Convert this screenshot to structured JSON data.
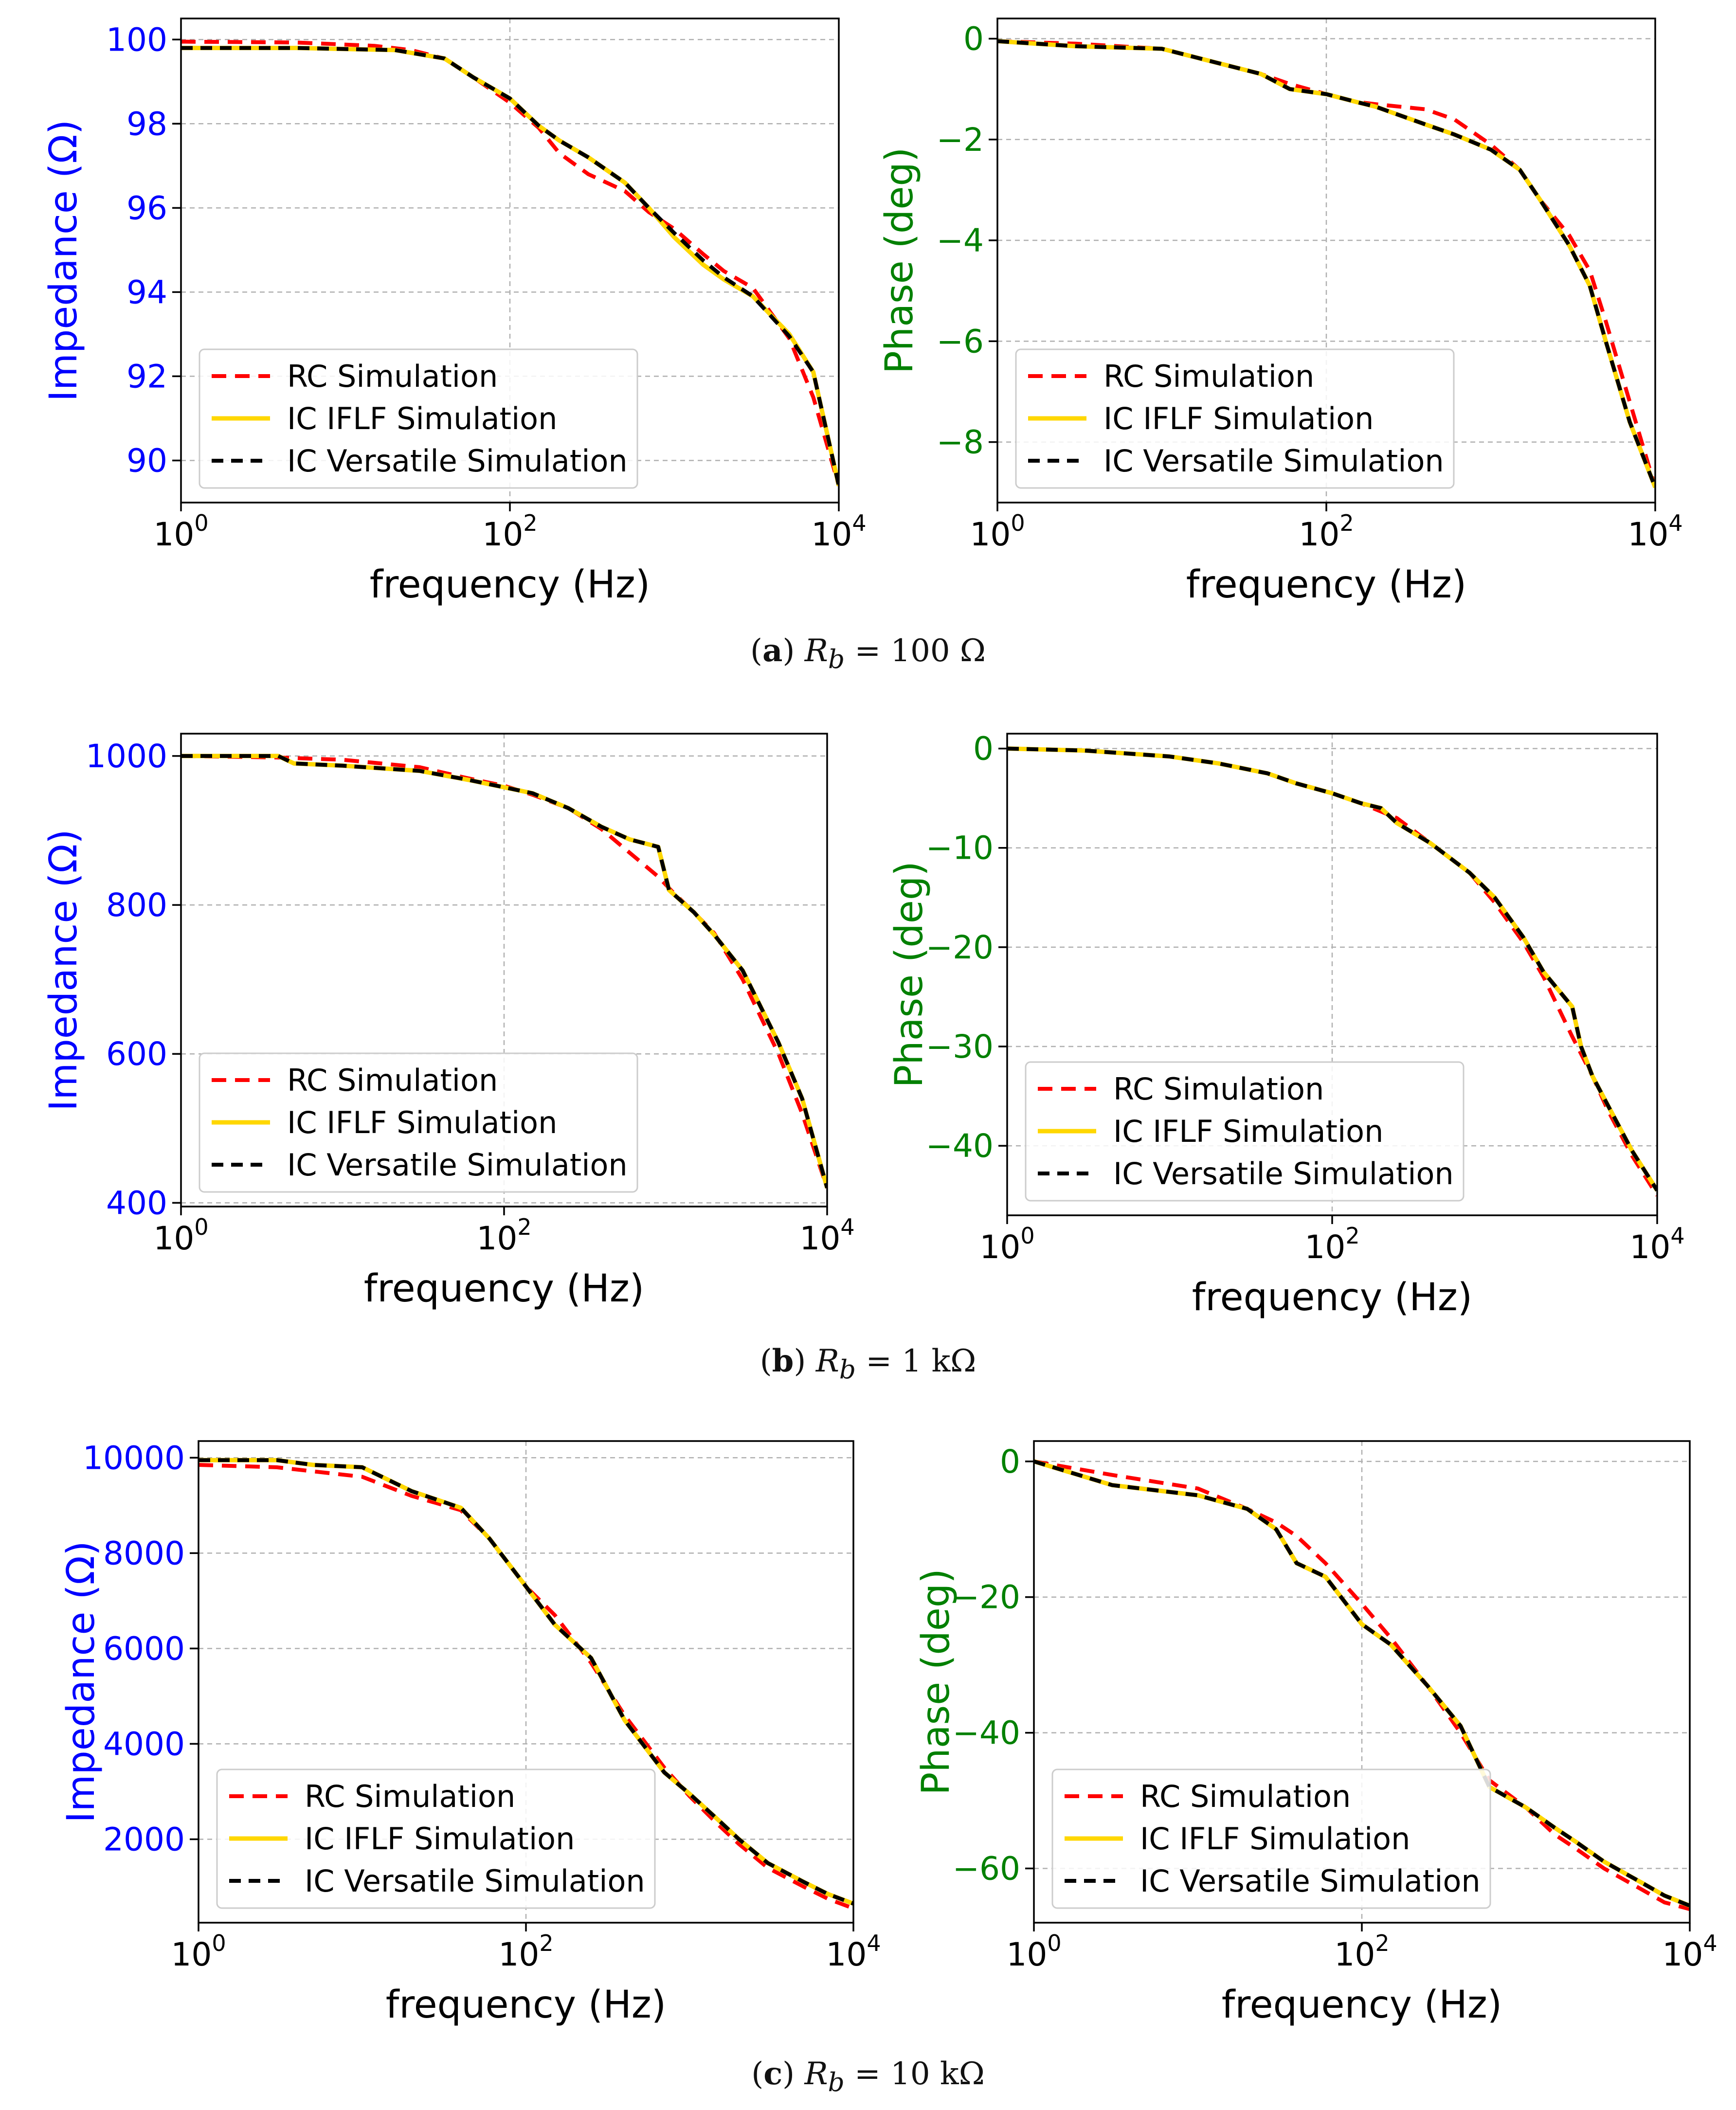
{
  "legend_entries": [
    "RC Simulation",
    "IC IFLF Simulation",
    "IC Versatile Simulation"
  ],
  "series_colors": {
    "RC Simulation": "#ff0000",
    "IC IFLF Simulation": "#ffd700",
    "IC Versatile Simulation": "#000000"
  },
  "impedance_axis_color": "#0000ff",
  "phase_axis_color": "#008000",
  "captions": [
    {
      "letter": "a",
      "var": "R",
      "sub": "b",
      "rest": " = 100 Ω"
    },
    {
      "letter": "b",
      "var": "R",
      "sub": "b",
      "rest": " = 1 kΩ"
    },
    {
      "letter": "c",
      "var": "R",
      "sub": "b",
      "rest": " = 10 kΩ"
    }
  ],
  "chart_data": [
    {
      "type": "line",
      "panel": "a-impedance",
      "xlabel": "frequency (Hz)",
      "ylabel": "Impedance (Ω)",
      "xscale": "log",
      "xlim": [
        1,
        10000
      ],
      "ylim": [
        89,
        100.5
      ],
      "xticks": [
        1,
        100,
        10000
      ],
      "xtick_labels": [
        {
          "base": "10",
          "exp": "0"
        },
        {
          "base": "10",
          "exp": "2"
        },
        {
          "base": "10",
          "exp": "4"
        }
      ],
      "yticks": [
        90,
        92,
        94,
        96,
        98,
        100
      ],
      "ytick_labels": [
        "90",
        "92",
        "94",
        "96",
        "98",
        "100"
      ],
      "grid": true,
      "legend_loc": "lower-left",
      "series": [
        {
          "name": "RC Simulation",
          "x": [
            1,
            5,
            15,
            25,
            40,
            60,
            100,
            150,
            200,
            300,
            500,
            700,
            1000,
            1500,
            2000,
            3000,
            5000,
            7000,
            10000
          ],
          "y": [
            99.95,
            99.93,
            99.85,
            99.75,
            99.55,
            99.1,
            98.5,
            97.9,
            97.3,
            96.8,
            96.4,
            95.9,
            95.5,
            94.9,
            94.5,
            94.1,
            92.9,
            91.5,
            89.4
          ]
        },
        {
          "name": "IC IFLF Simulation",
          "x": [
            1,
            5,
            20,
            40,
            60,
            100,
            150,
            200,
            300,
            500,
            700,
            1000,
            1500,
            2000,
            3000,
            5000,
            7000,
            10000
          ],
          "y": [
            99.8,
            99.8,
            99.75,
            99.55,
            99.1,
            98.6,
            97.95,
            97.6,
            97.2,
            96.6,
            96.0,
            95.3,
            94.65,
            94.3,
            93.9,
            93.0,
            92.1,
            89.4
          ]
        },
        {
          "name": "IC Versatile Simulation",
          "x": [
            1,
            5,
            20,
            40,
            60,
            100,
            150,
            200,
            300,
            500,
            700,
            1000,
            1500,
            2000,
            3000,
            5000,
            7000,
            10000
          ],
          "y": [
            99.8,
            99.8,
            99.75,
            99.55,
            99.1,
            98.6,
            97.95,
            97.6,
            97.2,
            96.6,
            96.0,
            95.4,
            94.75,
            94.35,
            93.9,
            92.95,
            92.1,
            89.4
          ]
        }
      ]
    },
    {
      "type": "line",
      "panel": "a-phase",
      "xlabel": "frequency (Hz)",
      "ylabel": "Phase (deg)",
      "xscale": "log",
      "xlim": [
        1,
        10000
      ],
      "ylim": [
        -9.2,
        0.4
      ],
      "xticks": [
        1,
        100,
        10000
      ],
      "xtick_labels": [
        {
          "base": "10",
          "exp": "0"
        },
        {
          "base": "10",
          "exp": "2"
        },
        {
          "base": "10",
          "exp": "4"
        }
      ],
      "yticks": [
        -8,
        -6,
        -4,
        -2,
        0
      ],
      "ytick_labels": [
        "−8",
        "−6",
        "−4",
        "−2",
        "0"
      ],
      "grid": true,
      "legend_loc": "lower-left",
      "series": [
        {
          "name": "RC Simulation",
          "x": [
            1,
            3,
            10,
            20,
            40,
            60,
            100,
            150,
            200,
            400,
            600,
            1000,
            1500,
            2000,
            3000,
            4000,
            5000,
            7000,
            10000
          ],
          "y": [
            -0.05,
            -0.1,
            -0.2,
            -0.45,
            -0.7,
            -0.9,
            -1.1,
            -1.25,
            -1.3,
            -1.4,
            -1.6,
            -2.1,
            -2.6,
            -3.2,
            -3.9,
            -4.6,
            -5.6,
            -7.2,
            -8.9
          ]
        },
        {
          "name": "IC IFLF Simulation",
          "x": [
            1,
            3,
            10,
            20,
            40,
            60,
            100,
            150,
            200,
            400,
            600,
            1000,
            1500,
            2000,
            3000,
            4000,
            5000,
            7000,
            10000
          ],
          "y": [
            -0.05,
            -0.15,
            -0.2,
            -0.45,
            -0.7,
            -1.0,
            -1.1,
            -1.25,
            -1.35,
            -1.7,
            -1.9,
            -2.2,
            -2.6,
            -3.2,
            -4.1,
            -4.9,
            -6.0,
            -7.6,
            -8.9
          ]
        },
        {
          "name": "IC Versatile Simulation",
          "x": [
            1,
            3,
            10,
            20,
            40,
            60,
            100,
            150,
            200,
            400,
            600,
            1000,
            1500,
            2000,
            3000,
            4000,
            5000,
            7000,
            10000
          ],
          "y": [
            -0.05,
            -0.15,
            -0.2,
            -0.45,
            -0.7,
            -1.0,
            -1.1,
            -1.25,
            -1.35,
            -1.7,
            -1.9,
            -2.2,
            -2.6,
            -3.2,
            -4.1,
            -4.9,
            -6.0,
            -7.6,
            -8.9
          ]
        }
      ]
    },
    {
      "type": "line",
      "panel": "b-impedance",
      "xlabel": "frequency (Hz)",
      "ylabel": "Impedance (Ω)",
      "xscale": "log",
      "xlim": [
        1,
        10000
      ],
      "ylim": [
        395,
        1030
      ],
      "xticks": [
        1,
        100,
        10000
      ],
      "xtick_labels": [
        {
          "base": "10",
          "exp": "0"
        },
        {
          "base": "10",
          "exp": "2"
        },
        {
          "base": "10",
          "exp": "4"
        }
      ],
      "yticks": [
        400,
        600,
        800,
        1000
      ],
      "ytick_labels": [
        "400",
        "600",
        "800",
        "1000"
      ],
      "grid": true,
      "legend_loc": "lower-left",
      "series": [
        {
          "name": "RC Simulation",
          "x": [
            1,
            4,
            10,
            30,
            60,
            100,
            150,
            250,
            400,
            600,
            900,
            1100,
            1500,
            2000,
            3000,
            5000,
            7000,
            10000
          ],
          "y": [
            1000,
            998,
            995,
            985,
            970,
            960,
            948,
            930,
            902,
            870,
            838,
            818,
            790,
            762,
            700,
            600,
            520,
            420
          ]
        },
        {
          "name": "IC IFLF Simulation",
          "x": [
            1,
            4,
            5,
            10,
            30,
            60,
            100,
            150,
            250,
            400,
            600,
            900,
            1050,
            1500,
            2000,
            3000,
            5000,
            7000,
            10000
          ],
          "y": [
            1000,
            1000,
            990,
            987,
            980,
            968,
            958,
            950,
            930,
            905,
            888,
            878,
            820,
            790,
            760,
            712,
            615,
            540,
            420
          ]
        },
        {
          "name": "IC Versatile Simulation",
          "x": [
            1,
            4,
            5,
            10,
            30,
            60,
            100,
            150,
            250,
            400,
            600,
            900,
            1050,
            1500,
            2000,
            3000,
            5000,
            7000,
            10000
          ],
          "y": [
            1000,
            1000,
            990,
            987,
            980,
            968,
            958,
            950,
            930,
            905,
            888,
            878,
            820,
            790,
            760,
            712,
            615,
            540,
            420
          ]
        }
      ]
    },
    {
      "type": "line",
      "panel": "b-phase",
      "xlabel": "frequency (Hz)",
      "ylabel": "Phase (deg)",
      "xscale": "log",
      "xlim": [
        1,
        10000
      ],
      "ylim": [
        -47,
        1.5
      ],
      "xticks": [
        1,
        100,
        10000
      ],
      "xtick_labels": [
        {
          "base": "10",
          "exp": "0"
        },
        {
          "base": "10",
          "exp": "2"
        },
        {
          "base": "10",
          "exp": "4"
        }
      ],
      "yticks": [
        -40,
        -30,
        -20,
        -10,
        0
      ],
      "ytick_labels": [
        "−40",
        "−30",
        "−20",
        "−10",
        "0"
      ],
      "grid": true,
      "legend_loc": "lower-left",
      "series": [
        {
          "name": "RC Simulation",
          "x": [
            1,
            3,
            10,
            20,
            40,
            60,
            100,
            150,
            250,
            400,
            700,
            1000,
            1500,
            2000,
            3000,
            4000,
            5000,
            7000,
            10000
          ],
          "y": [
            0,
            -0.2,
            -0.8,
            -1.5,
            -2.5,
            -3.5,
            -4.5,
            -5.5,
            -7,
            -9.5,
            -12.5,
            -15.5,
            -19.5,
            -23,
            -29,
            -33,
            -36.5,
            -41,
            -45
          ]
        },
        {
          "name": "IC IFLF Simulation",
          "x": [
            1,
            3,
            10,
            20,
            40,
            60,
            100,
            150,
            200,
            250,
            400,
            700,
            1000,
            1500,
            2000,
            3000,
            3400,
            4000,
            5000,
            7000,
            10000
          ],
          "y": [
            0,
            -0.2,
            -0.8,
            -1.5,
            -2.5,
            -3.5,
            -4.5,
            -5.5,
            -6,
            -7.5,
            -9.5,
            -12.5,
            -15,
            -19,
            -22.5,
            -26,
            -30,
            -33,
            -36,
            -40.5,
            -44.5
          ]
        },
        {
          "name": "IC Versatile Simulation",
          "x": [
            1,
            3,
            10,
            20,
            40,
            60,
            100,
            150,
            200,
            250,
            400,
            700,
            1000,
            1500,
            2000,
            3000,
            3400,
            4000,
            5000,
            7000,
            10000
          ],
          "y": [
            0,
            -0.2,
            -0.8,
            -1.5,
            -2.5,
            -3.5,
            -4.5,
            -5.5,
            -6,
            -7.5,
            -9.5,
            -12.5,
            -15,
            -19,
            -22.5,
            -26,
            -30,
            -33,
            -36,
            -40.5,
            -44.5
          ]
        }
      ]
    },
    {
      "type": "line",
      "panel": "c-impedance",
      "xlabel": "frequency (Hz)",
      "ylabel": "Impedance (Ω)",
      "xscale": "log",
      "xlim": [
        1,
        10000
      ],
      "ylim": [
        250,
        10350
      ],
      "xticks": [
        1,
        100,
        10000
      ],
      "xtick_labels": [
        {
          "base": "10",
          "exp": "0"
        },
        {
          "base": "10",
          "exp": "2"
        },
        {
          "base": "10",
          "exp": "4"
        }
      ],
      "yticks": [
        2000,
        4000,
        6000,
        8000,
        10000
      ],
      "ytick_labels": [
        "2000",
        "4000",
        "6000",
        "8000",
        "10000"
      ],
      "grid": true,
      "legend_loc": "lower-left",
      "series": [
        {
          "name": "RC Simulation",
          "x": [
            1,
            3,
            10,
            20,
            40,
            60,
            100,
            150,
            250,
            400,
            700,
            1000,
            1500,
            2000,
            3000,
            5000,
            7000,
            10000
          ],
          "y": [
            9850,
            9800,
            9600,
            9200,
            8900,
            8300,
            7300,
            6700,
            5700,
            4600,
            3500,
            2900,
            2300,
            1900,
            1400,
            1000,
            750,
            550
          ]
        },
        {
          "name": "IC IFLF Simulation",
          "x": [
            1,
            3,
            5,
            10,
            20,
            40,
            60,
            100,
            150,
            250,
            400,
            700,
            1000,
            1500,
            2000,
            3000,
            5000,
            7000,
            10000
          ],
          "y": [
            9950,
            9950,
            9850,
            9800,
            9300,
            8950,
            8300,
            7300,
            6500,
            5800,
            4500,
            3400,
            2950,
            2400,
            2000,
            1500,
            1100,
            850,
            650
          ]
        },
        {
          "name": "IC Versatile Simulation",
          "x": [
            1,
            3,
            5,
            10,
            20,
            40,
            60,
            100,
            150,
            250,
            400,
            700,
            1000,
            1500,
            2000,
            3000,
            5000,
            7000,
            10000
          ],
          "y": [
            9950,
            9950,
            9850,
            9800,
            9300,
            8950,
            8300,
            7300,
            6500,
            5800,
            4500,
            3400,
            2950,
            2400,
            2000,
            1500,
            1100,
            850,
            650
          ]
        }
      ]
    },
    {
      "type": "line",
      "panel": "c-phase",
      "xlabel": "frequency (Hz)",
      "ylabel": "Phase (deg)",
      "xscale": "log",
      "xlim": [
        1,
        10000
      ],
      "ylim": [
        -68,
        3
      ],
      "xticks": [
        1,
        100,
        10000
      ],
      "xtick_labels": [
        {
          "base": "10",
          "exp": "0"
        },
        {
          "base": "10",
          "exp": "2"
        },
        {
          "base": "10",
          "exp": "4"
        }
      ],
      "yticks": [
        -60,
        -40,
        -20,
        0
      ],
      "ytick_labels": [
        "−60",
        "−40",
        "−20",
        "0"
      ],
      "grid": true,
      "legend_loc": "lower-left",
      "series": [
        {
          "name": "RC Simulation",
          "x": [
            1,
            3,
            10,
            20,
            30,
            40,
            60,
            100,
            150,
            250,
            400,
            600,
            1000,
            1500,
            2000,
            3000,
            5000,
            7000,
            10000
          ],
          "y": [
            0,
            -2,
            -4,
            -7,
            -9,
            -11,
            -15,
            -21,
            -26,
            -33,
            -40,
            -47,
            -51,
            -55,
            -57,
            -60,
            -63,
            -65,
            -66
          ]
        },
        {
          "name": "IC IFLF Simulation",
          "x": [
            1,
            3,
            10,
            20,
            30,
            40,
            60,
            100,
            150,
            250,
            400,
            600,
            1000,
            1500,
            2000,
            3000,
            5000,
            7000,
            10000
          ],
          "y": [
            0,
            -3.5,
            -5,
            -7,
            -10,
            -15,
            -17,
            -24,
            -27,
            -33,
            -39,
            -48,
            -51,
            -54,
            -56,
            -59,
            -62,
            -64,
            -65.5
          ]
        },
        {
          "name": "IC Versatile Simulation",
          "x": [
            1,
            3,
            10,
            20,
            30,
            40,
            60,
            100,
            150,
            250,
            400,
            600,
            1000,
            1500,
            2000,
            3000,
            5000,
            7000,
            10000
          ],
          "y": [
            0,
            -3.5,
            -5,
            -7,
            -10,
            -15,
            -17,
            -24,
            -27,
            -33,
            -39,
            -48,
            -51,
            -54,
            -56,
            -59,
            -62,
            -64,
            -65.5
          ]
        }
      ]
    }
  ]
}
